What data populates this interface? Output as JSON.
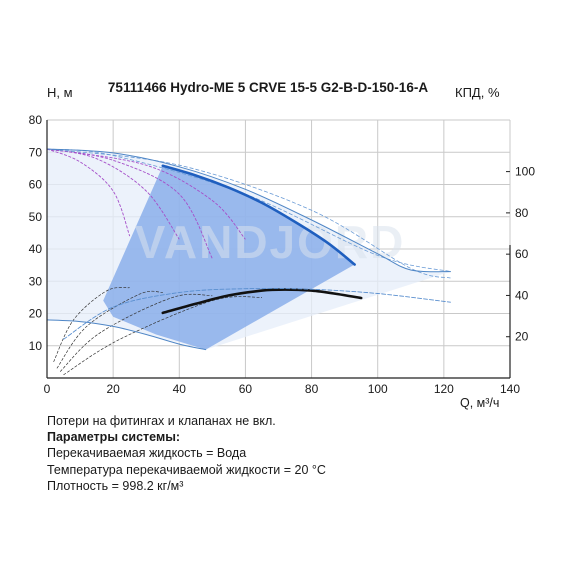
{
  "chart_data": {
    "type": "line",
    "title": "75111466 Hydro-ME 5 CRVE 15-5 G2-B-D-150-16-A",
    "ylabel": "H, м",
    "y2label": "КПД, %",
    "xlabel": "Q, м³/ч",
    "xlim": [
      0,
      140
    ],
    "ylim": [
      0,
      80
    ],
    "y2lim": [
      0,
      125
    ],
    "x_ticks": [
      "0",
      "20",
      "40",
      "60",
      "80",
      "100",
      "120",
      "140"
    ],
    "y_ticks": [
      "10",
      "20",
      "30",
      "40",
      "50",
      "60",
      "70",
      "80"
    ],
    "y2_ticks": [
      "20",
      "40",
      "60",
      "80",
      "100"
    ],
    "grid": true,
    "watermark": "VANDJORD",
    "series": [
      {
        "role": "head-max-operating",
        "color": "#1f5fbf",
        "x": [
          35,
          45,
          55,
          65,
          75,
          85,
          93
        ],
        "y": [
          65.8,
          62.8,
          59.0,
          54.3,
          48.4,
          41.8,
          35.2
        ]
      },
      {
        "role": "head-max-range",
        "color": "#4f86c6",
        "x": [
          0,
          20,
          40,
          60,
          80,
          100,
          110,
          122
        ],
        "y": [
          71,
          69.8,
          65.5,
          58.5,
          49,
          38.5,
          33.5,
          33
        ]
      },
      {
        "role": "head-min-range",
        "color": "#4f86c6",
        "x": [
          0,
          10,
          20,
          30,
          40,
          48
        ],
        "y": [
          18,
          17.5,
          16.0,
          13.5,
          10.5,
          8.8
        ]
      },
      {
        "role": "efficiency",
        "color": "#111111",
        "x": [
          35,
          45,
          55,
          65,
          72,
          80,
          88,
          95
        ],
        "y": [
          20.2,
          23.0,
          25.6,
          27.1,
          27.4,
          27.1,
          26.0,
          24.8
        ]
      },
      {
        "role": "efficiency-speed-curves",
        "color": "#5a8fcf",
        "x": [
          5,
          20,
          40,
          60,
          80,
          100,
          122
        ],
        "y": [
          12,
          22,
          26.5,
          27.7,
          27.5,
          26.2,
          23.5
        ]
      }
    ],
    "operating_area_color": "#7da6e8",
    "full_area_color": "#e6eefa"
  },
  "notes": {
    "line1": "Потери на фитингах и клапанах не вкл.",
    "line2": "Параметры системы:",
    "line3": "Перекачиваемая жидкость = Вода",
    "line4": "Температура перекачиваемой жидкости = 20 °C",
    "line5": "Плотность = 998.2 кг/м³"
  }
}
